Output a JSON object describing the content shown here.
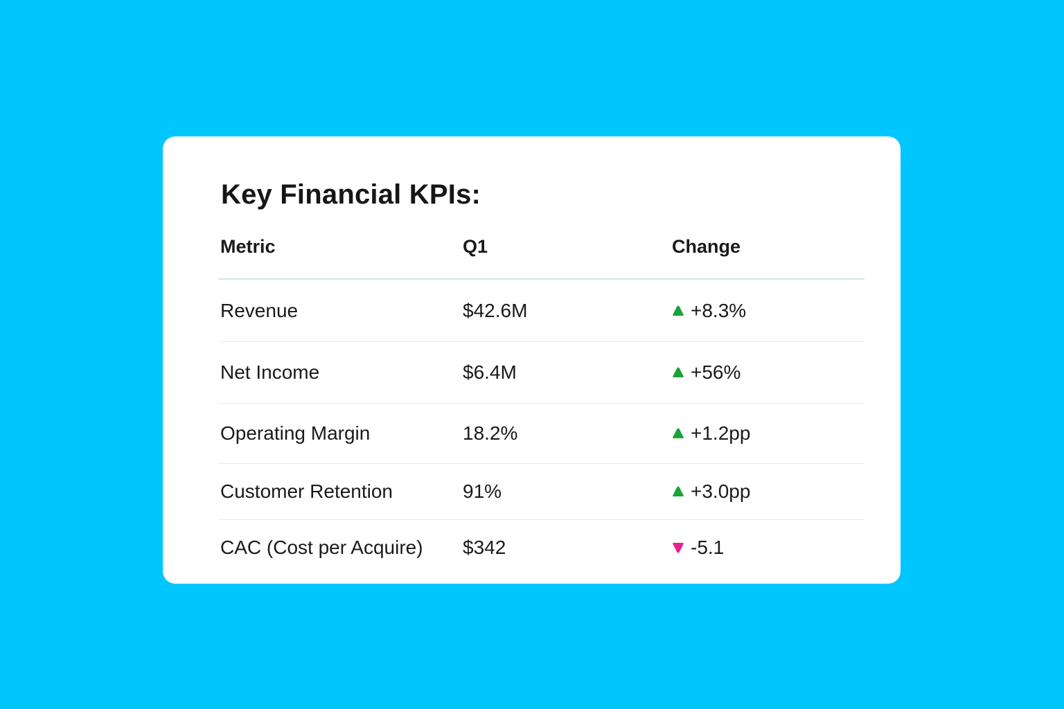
{
  "title": "Key Financial KPIs:",
  "colors": {
    "background": "#00c6ff",
    "card": "#ffffff",
    "up": "#1ba336",
    "down": "#ea1f8f"
  },
  "table": {
    "headers": [
      "Metric",
      "Q1",
      "Change"
    ],
    "rows": [
      {
        "metric": "Revenue",
        "q1": "$42.6M",
        "change": "+8.3%",
        "direction": "up",
        "direction_icon": "triangle-up-icon"
      },
      {
        "metric": "Net Income",
        "q1": "$6.4M",
        "change": "+56%",
        "direction": "up",
        "direction_icon": "triangle-up-icon"
      },
      {
        "metric": "Operating Margin",
        "q1": "18.2%",
        "change": "+1.2pp",
        "direction": "up",
        "direction_icon": "triangle-up-icon"
      },
      {
        "metric": "Customer Retention",
        "q1": "91%",
        "change": "+3.0pp",
        "direction": "up",
        "direction_icon": "triangle-up-icon"
      },
      {
        "metric": "CAC (Cost per Acquire)",
        "q1": "$342",
        "change": "-5.1",
        "direction": "down",
        "direction_icon": "triangle-down-icon"
      }
    ]
  }
}
